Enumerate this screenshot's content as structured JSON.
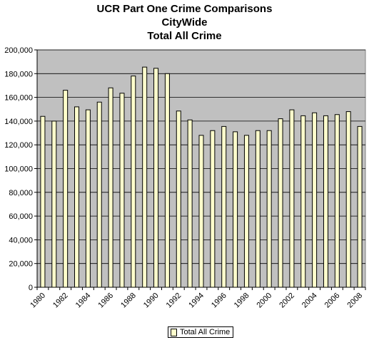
{
  "chart_data": {
    "type": "bar",
    "title_lines": [
      "UCR Part One Crime Comparisons",
      "CityWide",
      "Total All Crime"
    ],
    "categories": [
      "1980",
      "1981",
      "1982",
      "1983",
      "1984",
      "1985",
      "1986",
      "1987",
      "1988",
      "1989",
      "1990",
      "1991",
      "1992",
      "1993",
      "1994",
      "1995",
      "1996",
      "1997",
      "1998",
      "1999",
      "2000",
      "2001",
      "2002",
      "2003",
      "2004",
      "2005",
      "2006",
      "2007",
      "2008"
    ],
    "x_tick_labels": [
      "1980",
      "1982",
      "1984",
      "1986",
      "1988",
      "1990",
      "1992",
      "1994",
      "1996",
      "1998",
      "2000",
      "2002",
      "2004",
      "2006",
      "2008"
    ],
    "series": [
      {
        "name": "Total All Crime",
        "values": [
          144000,
          140000,
          166000,
          152000,
          149500,
          156000,
          168000,
          163500,
          178000,
          185500,
          184500,
          180000,
          148500,
          141000,
          128000,
          132000,
          135500,
          131000,
          128000,
          132000,
          132000,
          142000,
          149500,
          144500,
          147000,
          144500,
          145500,
          148000,
          135500
        ]
      }
    ],
    "ylim": [
      0,
      200000
    ],
    "yticks": [
      0,
      20000,
      40000,
      60000,
      80000,
      100000,
      120000,
      140000,
      160000,
      180000,
      200000
    ],
    "ytick_labels": [
      "0",
      "20,000",
      "40,000",
      "60,000",
      "80,000",
      "100,000",
      "120,000",
      "140,000",
      "160,000",
      "180,000",
      "200,000"
    ],
    "grid": true,
    "legend_position": "bottom",
    "legend_label": "Total All Crime",
    "colors": {
      "bar_fill": "#ffffcc",
      "bar_stroke": "#000000",
      "plot_background": "#c0c0c0",
      "gridline": "#000000"
    }
  }
}
